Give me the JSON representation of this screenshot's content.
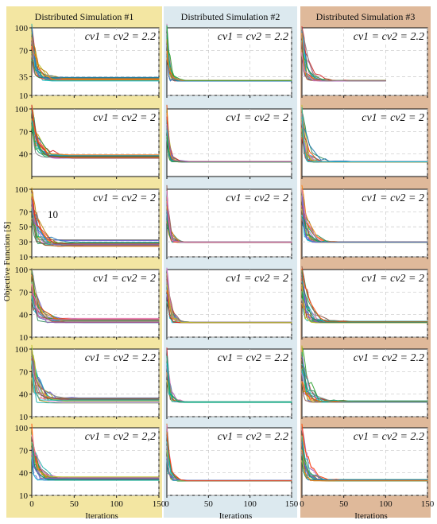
{
  "figure": {
    "ylabel": "Objective Function [$]",
    "xlabel": "Iterations",
    "column_backgrounds": [
      "#f3e6a2",
      "#dce9ef",
      "#dfb99a"
    ],
    "columns": [
      {
        "title": "Distributed Simulation #1"
      },
      {
        "title": "Distributed Simulation #2"
      },
      {
        "title": "Distributed Simulation #3"
      }
    ],
    "rows": [
      {
        "annotations": [
          "cv1 = cv2 = 2.2",
          "cv1 = cv2 = 2.2",
          "cv1 = cv2 = 2.2"
        ]
      },
      {
        "annotations": [
          "cv1 = cv2 = 2",
          "cv1 = cv2 = 2",
          "cv1 = cv2 = 2"
        ]
      },
      {
        "annotations": [
          "cv1 = cv2 = 2",
          "cv1 = cv2 = 2",
          "cv1 = cv2 = 2"
        ]
      },
      {
        "annotations": [
          "cv1 = cv2 = 2",
          "cv1 = cv2 = 2",
          "cv1 = cv2 = 2"
        ]
      },
      {
        "annotations": [
          "cv1 = cv2 = 2.2",
          "cv1 = cv2 = 2.2",
          "cv1 = cv2 = 2.2"
        ]
      },
      {
        "annotations": [
          "cv1 = cv2 = 2,2",
          "cv1 = cv2 = 2.2",
          "cv1 = cv2 = 2.2"
        ]
      }
    ],
    "extra_label": "10",
    "x_ticks": [
      0,
      50,
      100,
      150
    ],
    "y_ticks_by_row": [
      [
        "10",
        "35",
        "70",
        "100"
      ],
      [
        "40",
        "70",
        "100"
      ],
      [
        "10",
        "30",
        "50",
        "70",
        "100"
      ],
      [
        "10",
        "40",
        "70",
        "100"
      ],
      [
        "10",
        "40",
        "70",
        "100"
      ],
      [
        "10",
        "40",
        "70",
        "100"
      ]
    ],
    "series_colors": [
      "#1f77b4",
      "#ff7f0e",
      "#2ca02c",
      "#d62728",
      "#9467bd",
      "#8c564b",
      "#e377c2",
      "#7f7f7f",
      "#bcbd22",
      "#17becf",
      "#00a86b",
      "#6a5acd",
      "#ff4500",
      "#2e8b57",
      "#b8860b",
      "#20b2aa"
    ]
  },
  "chart_data": {
    "type": "line",
    "layout": "6x3 small multiples",
    "ylabel": "Objective Function [$]",
    "xlabel": "Iterations",
    "xlim": [
      0,
      150
    ],
    "ylim": [
      10,
      100
    ],
    "x_ticks": [
      0,
      50,
      100,
      150
    ],
    "grid": true,
    "columns": [
      "Distributed Simulation #1",
      "Distributed Simulation #2",
      "Distributed Simulation #3"
    ],
    "rows": [
      [
        "cv1 = cv2 = 2.2",
        "cv1 = cv2 = 2.2",
        "cv1 = cv2 = 2.2"
      ],
      [
        "cv1 = cv2 = 2",
        "cv1 = cv2 = 2",
        "cv1 = cv2 = 2"
      ],
      [
        "cv1 = cv2 = 2",
        "cv1 = cv2 = 2",
        "cv1 = cv2 = 2"
      ],
      [
        "cv1 = cv2 = 2",
        "cv1 = cv2 = 2",
        "cv1 = cv2 = 2"
      ],
      [
        "cv1 = cv2 = 2.2",
        "cv1 = cv2 = 2.2",
        "cv1 = cv2 = 2.2"
      ],
      [
        "cv1 = cv2 = 2,2",
        "cv1 = cv2 = 2.2",
        "cv1 = cv2 = 2.2"
      ]
    ],
    "trace_profiles": [
      {
        "row": 1,
        "column": 1,
        "endpoint_range": [
          29,
          34
        ],
        "convergence_iteration_range": [
          10,
          40
        ]
      },
      {
        "row": 1,
        "column": 2,
        "endpoint_range": [
          29,
          30
        ],
        "convergence_iteration_range": [
          8,
          18
        ]
      },
      {
        "row": 1,
        "column": 3,
        "endpoint_range": [
          29,
          30
        ],
        "convergence_iteration_range": [
          8,
          40
        ]
      },
      {
        "row": 2,
        "column": 1,
        "endpoint_range": [
          34,
          39
        ],
        "convergence_iteration_range": [
          10,
          45
        ]
      },
      {
        "row": 2,
        "column": 2,
        "endpoint_range": [
          29,
          30
        ],
        "convergence_iteration_range": [
          7,
          18
        ]
      },
      {
        "row": 2,
        "column": 3,
        "endpoint_range": [
          29,
          30
        ],
        "convergence_iteration_range": [
          8,
          40
        ]
      },
      {
        "row": 3,
        "column": 1,
        "endpoint_range": [
          24,
          33
        ],
        "convergence_iteration_range": [
          10,
          45
        ]
      },
      {
        "row": 3,
        "column": 2,
        "endpoint_range": [
          29,
          30
        ],
        "convergence_iteration_range": [
          6,
          18
        ]
      },
      {
        "row": 3,
        "column": 3,
        "endpoint_range": [
          29,
          30
        ],
        "convergence_iteration_range": [
          8,
          36
        ]
      },
      {
        "row": 4,
        "column": 1,
        "endpoint_range": [
          29,
          35
        ],
        "convergence_iteration_range": [
          10,
          45
        ]
      },
      {
        "row": 4,
        "column": 2,
        "endpoint_range": [
          29,
          30
        ],
        "convergence_iteration_range": [
          8,
          22
        ]
      },
      {
        "row": 4,
        "column": 3,
        "endpoint_range": [
          29,
          31
        ],
        "convergence_iteration_range": [
          8,
          45
        ]
      },
      {
        "row": 5,
        "column": 1,
        "endpoint_range": [
          28,
          35
        ],
        "convergence_iteration_range": [
          10,
          45
        ]
      },
      {
        "row": 5,
        "column": 2,
        "endpoint_range": [
          29,
          30
        ],
        "convergence_iteration_range": [
          8,
          20
        ]
      },
      {
        "row": 5,
        "column": 3,
        "endpoint_range": [
          29,
          31
        ],
        "convergence_iteration_range": [
          8,
          45
        ]
      },
      {
        "row": 6,
        "column": 1,
        "endpoint_range": [
          30,
          35
        ],
        "convergence_iteration_range": [
          10,
          45
        ]
      },
      {
        "row": 6,
        "column": 2,
        "endpoint_range": [
          29,
          30
        ],
        "convergence_iteration_range": [
          8,
          18
        ]
      },
      {
        "row": 6,
        "column": 3,
        "endpoint_range": [
          29,
          31
        ],
        "convergence_iteration_range": [
          8,
          40
        ]
      }
    ]
  }
}
